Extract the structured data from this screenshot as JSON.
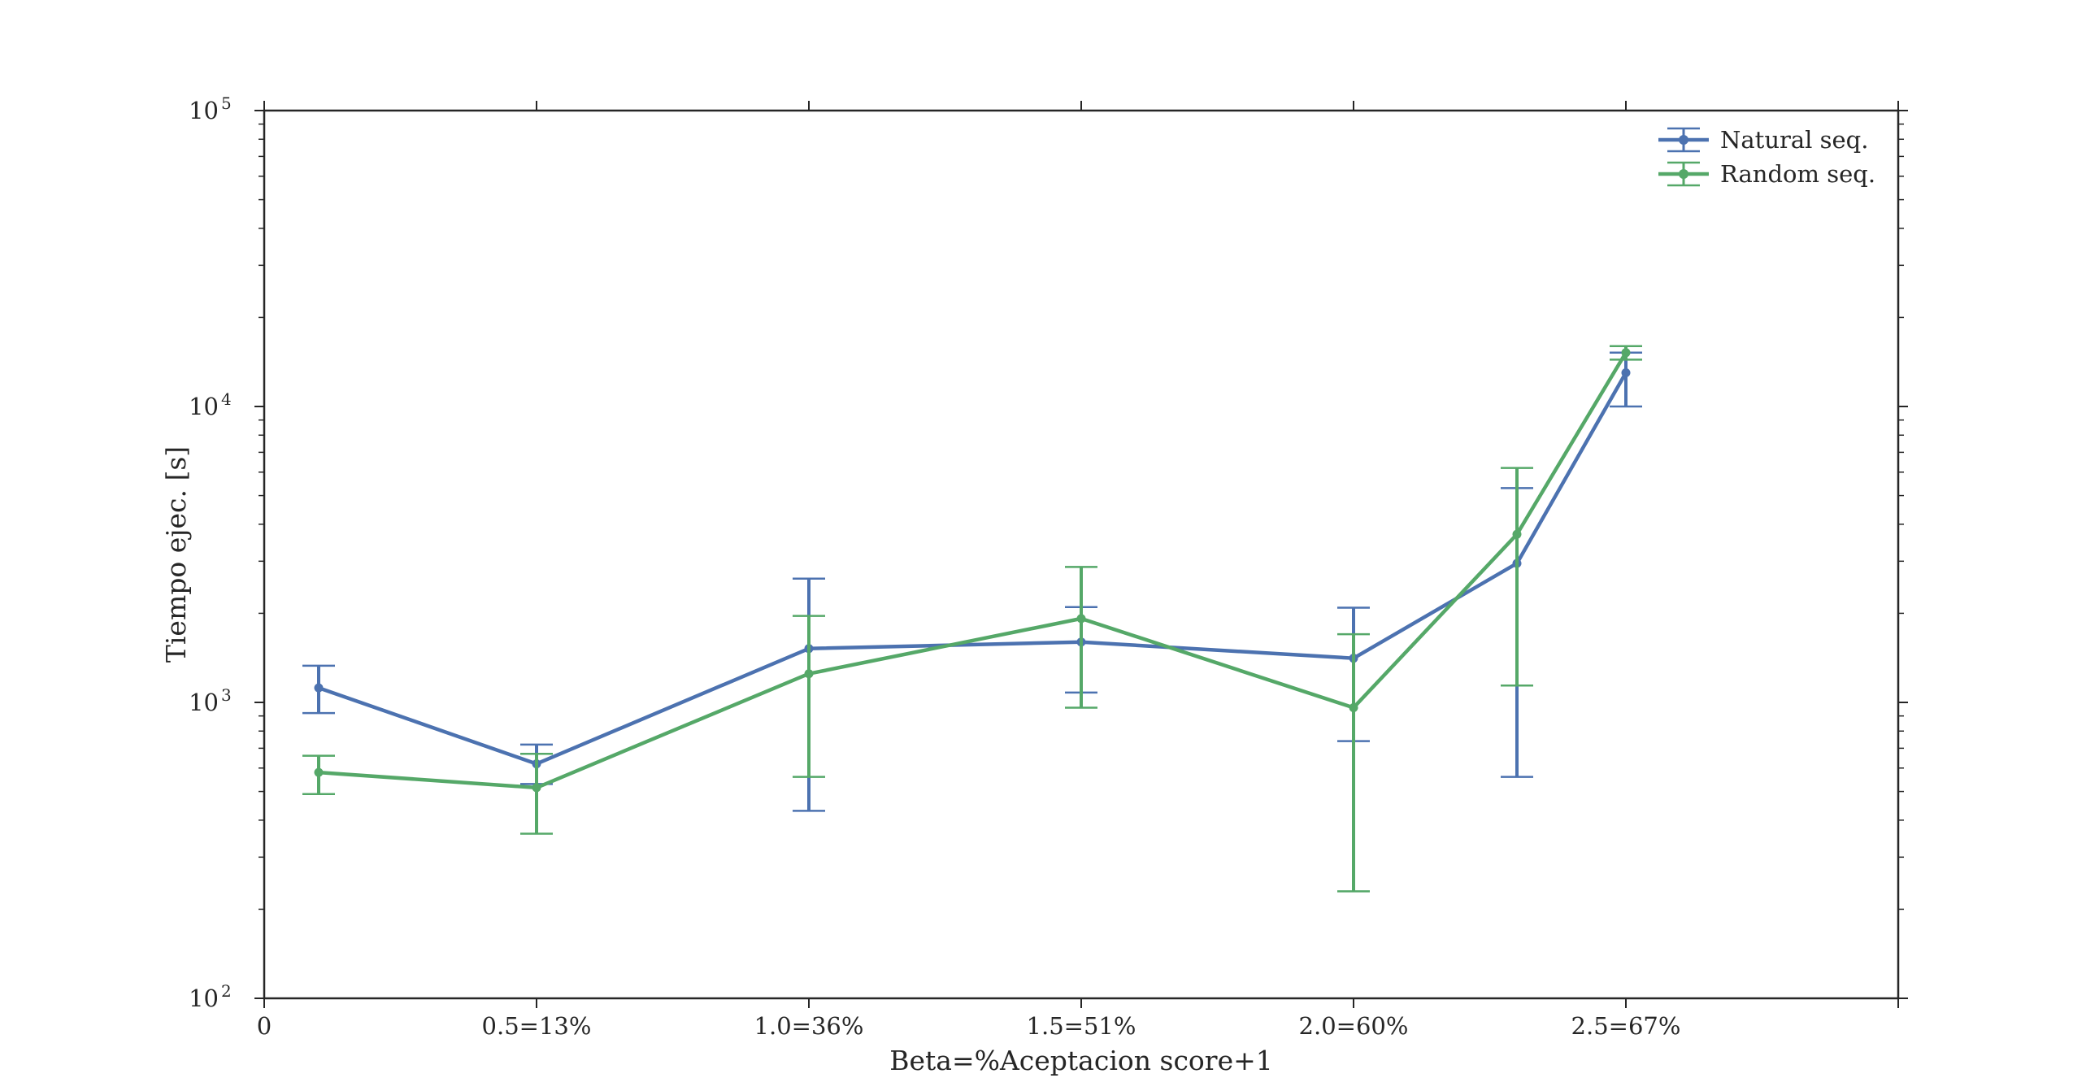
{
  "chart_data": {
    "type": "line",
    "title": "",
    "xlabel": "Beta=%Aceptacion score+1",
    "ylabel": "Tiempo ejec. [s]",
    "xscale": "linear",
    "yscale": "log",
    "xlim": [
      0,
      3.0
    ],
    "ylim": [
      100,
      100000
    ],
    "x_tick_values": [
      0,
      0.5,
      1.0,
      1.5,
      2.0,
      2.5,
      3.0
    ],
    "x_tick_labels": [
      "0",
      "0.5=13%",
      "1.0=36%",
      "1.5=51%",
      "2.0=60%",
      "2.5=67%",
      ""
    ],
    "y_tick_values": [
      100,
      1000,
      10000,
      100000
    ],
    "y_tick_base": "10",
    "y_tick_exponents": [
      "2",
      "3",
      "4",
      "5"
    ],
    "grid": false,
    "legend_position": "top-right",
    "series": [
      {
        "name": "Natural seq.",
        "color": "#4c72b0",
        "x": [
          0.1,
          0.5,
          1.0,
          1.5,
          2.0,
          2.3,
          2.5
        ],
        "y": [
          1120,
          620,
          1520,
          1600,
          1410,
          2950,
          13000
        ],
        "err_low": [
          920,
          530,
          430,
          1080,
          740,
          560,
          10000
        ],
        "err_high": [
          1330,
          720,
          2620,
          2100,
          2090,
          5300,
          15200
        ]
      },
      {
        "name": "Random seq.",
        "color": "#55a868",
        "x": [
          0.1,
          0.5,
          1.0,
          1.5,
          2.0,
          2.3,
          2.5
        ],
        "y": [
          580,
          515,
          1250,
          1920,
          960,
          3700,
          15200
        ],
        "err_low": [
          490,
          360,
          560,
          960,
          230,
          1140,
          14400
        ],
        "err_high": [
          660,
          670,
          1960,
          2870,
          1700,
          6200,
          16000
        ]
      }
    ]
  }
}
